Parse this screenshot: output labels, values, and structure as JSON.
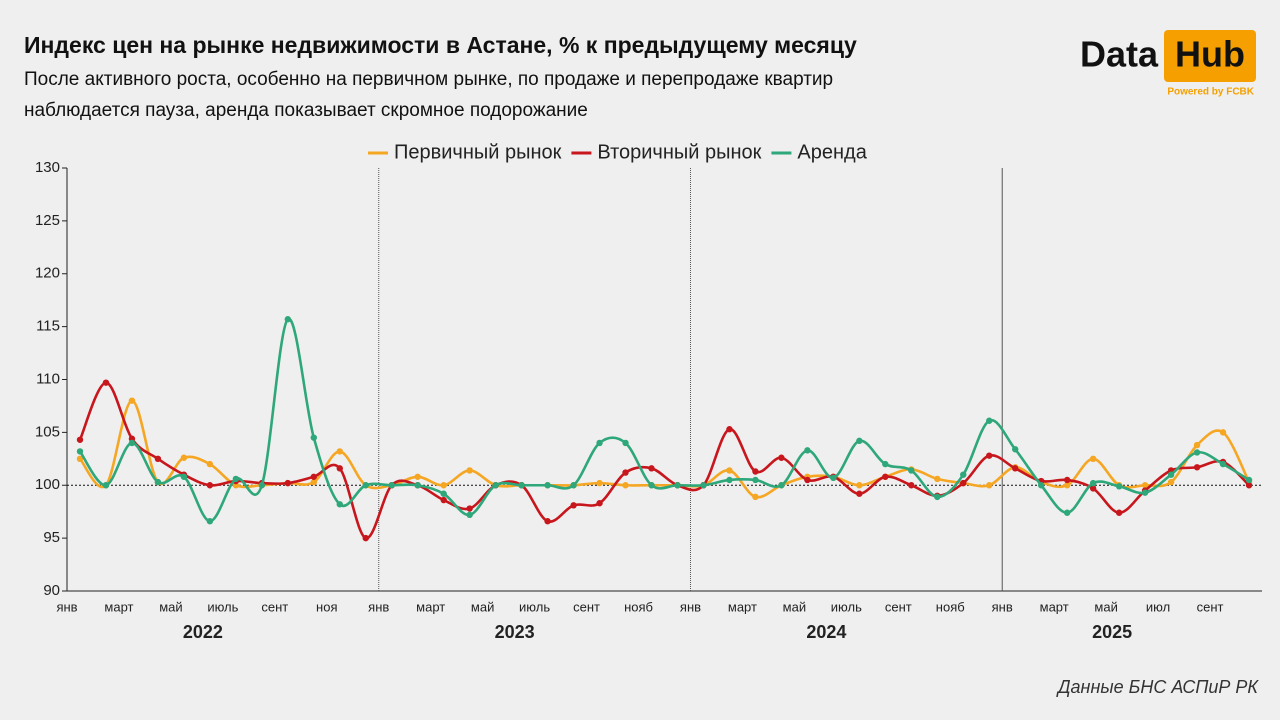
{
  "chart_data": {
    "type": "line",
    "title": "Индекс цен на рынке недвижимости в Астане, % к предыдущему месяцу",
    "subtitle": [
      "После активного роста, особенно на первичном рынке, по продаже и перепродаже квартир",
      "наблюдается пауза, аренда показывает скромное подорожание"
    ],
    "logo": {
      "left": "Data",
      "right": "Hub",
      "tagline": "Powered by FCBK"
    },
    "source": "Данные БНС АСПиР РК",
    "categories": [
      "янв",
      null,
      "март",
      null,
      "май",
      null,
      "июль",
      null,
      "сент",
      null,
      "ноя",
      null,
      "янв",
      null,
      "март",
      null,
      "май",
      null,
      "июль",
      null,
      "сент",
      null,
      "нояб",
      null,
      "янв",
      null,
      "март",
      null,
      "май",
      null,
      "июль",
      null,
      "сент",
      null,
      "нояб",
      null,
      "янв",
      null,
      "март",
      null,
      "май",
      null,
      "июл",
      null,
      "сент",
      null
    ],
    "years": [
      "2022",
      "2023",
      "2024",
      "2025"
    ],
    "series": [
      {
        "name": "Первичный рынок",
        "color": "#f5a623",
        "values": [
          102.5,
          100,
          108,
          100.3,
          102.6,
          102,
          100,
          100,
          100.2,
          100.3,
          103.2,
          100,
          100,
          100.8,
          100,
          101.4,
          100,
          100,
          100,
          100,
          100.2,
          100,
          100,
          100,
          100,
          101.4,
          98.9,
          100,
          100.8,
          100.8,
          100,
          100.8,
          101.5,
          100.6,
          100.2,
          100,
          101.7,
          100.3,
          100,
          102.5,
          100,
          100,
          100.3,
          103.8,
          105,
          100.3
        ]
      },
      {
        "name": "Вторичный рынок",
        "color": "#c8161d",
        "values": [
          104.3,
          109.7,
          104.4,
          102.5,
          101,
          100,
          100.4,
          100.2,
          100.2,
          100.8,
          101.6,
          95,
          100,
          100,
          98.6,
          97.8,
          100,
          100,
          96.6,
          98.1,
          98.3,
          101.2,
          101.6,
          100,
          100,
          105.3,
          101.3,
          102.6,
          100.5,
          100.8,
          99.2,
          100.8,
          100,
          99,
          100.2,
          102.8,
          101.6,
          100.4,
          100.5,
          99.7,
          97.4,
          99.5,
          101.4,
          101.7,
          102.2,
          100
        ]
      },
      {
        "name": "Аренда",
        "color": "#2ea77a",
        "values": [
          103.2,
          100,
          104,
          100.3,
          100.8,
          96.6,
          100.6,
          100,
          115.7,
          104.5,
          98.2,
          100,
          100,
          100,
          99.2,
          97.2,
          100,
          100,
          100,
          100,
          104,
          104,
          100,
          100,
          100,
          100.5,
          100.5,
          100,
          103.3,
          100.7,
          104.2,
          102,
          101.4,
          98.9,
          101,
          106.1,
          103.4,
          100,
          97.4,
          100.2,
          99.9,
          99.3,
          101,
          103.1,
          102,
          100.5
        ]
      }
    ],
    "ylim": [
      90,
      130
    ],
    "yticks": [
      90,
      95,
      100,
      105,
      110,
      115,
      120,
      125,
      130
    ],
    "reference_line": 100,
    "legend": "top"
  }
}
